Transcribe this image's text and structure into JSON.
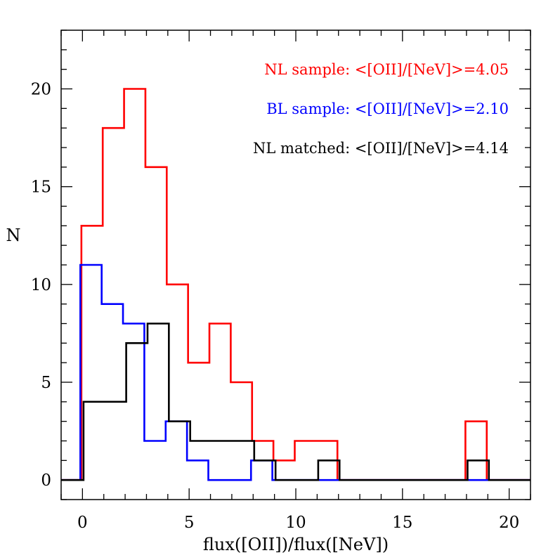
{
  "chart_data": {
    "type": "histogram",
    "xlabel": "flux([OII])/flux([NeV])",
    "ylabel": "N",
    "xlim": [
      -1,
      21
    ],
    "ylim": [
      -1,
      23
    ],
    "xticks_major": [
      0,
      5,
      10,
      15,
      20
    ],
    "xtick_labels": [
      "0",
      "5",
      "10",
      "15",
      "20"
    ],
    "yticks_major": [
      0,
      5,
      10,
      15,
      20
    ],
    "ytick_labels": [
      "0",
      "5",
      "10",
      "15",
      "20"
    ],
    "minor_tick_step": 1,
    "grid": false,
    "bin_edges": [
      0,
      1,
      2,
      3,
      4,
      5,
      6,
      7,
      8,
      9,
      10,
      11,
      12,
      13,
      14,
      15,
      16,
      17,
      18,
      19,
      20
    ],
    "range_min": -1,
    "range_max": 21,
    "series": [
      {
        "name": "NL sample",
        "color": "#ff0000",
        "x_offset": -0.05,
        "counts": [
          13,
          18,
          20,
          16,
          10,
          6,
          8,
          5,
          2,
          1,
          2,
          2,
          0,
          0,
          0,
          0,
          0,
          0,
          3,
          0
        ]
      },
      {
        "name": "BL sample",
        "color": "#0000ff",
        "x_offset": -0.1,
        "counts": [
          11,
          9,
          8,
          2,
          3,
          1,
          0,
          0,
          1,
          0,
          0,
          0,
          0,
          0,
          0,
          0,
          0,
          0,
          0,
          0
        ]
      },
      {
        "name": "NL matched",
        "color": "#000000",
        "x_offset": 0.05,
        "counts": [
          4,
          4,
          7,
          8,
          3,
          2,
          2,
          2,
          1,
          0,
          0,
          1,
          0,
          0,
          0,
          0,
          0,
          0,
          1,
          0
        ]
      }
    ],
    "legend_placement": "top-right",
    "annotations": [
      {
        "text": "NL sample: <[OII]/[NeV]>=4.05",
        "color": "#ff0000"
      },
      {
        "text": "BL sample: <[OII]/[NeV]>=2.10",
        "color": "#0000ff"
      },
      {
        "text": "NL matched: <[OII]/[NeV]>=4.14",
        "color": "#000000"
      }
    ]
  }
}
